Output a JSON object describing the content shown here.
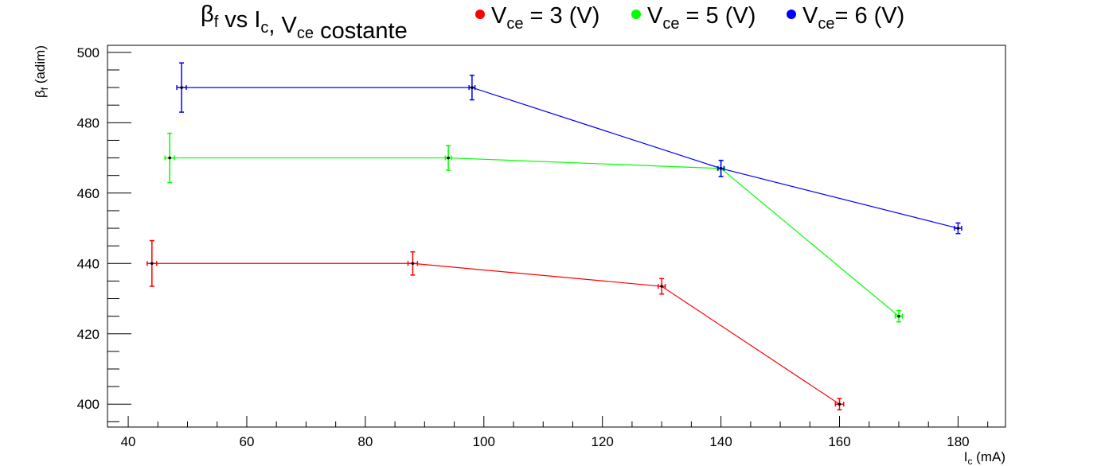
{
  "chart_data": {
    "type": "scatter",
    "title": {
      "text": "β",
      "parts": [
        {
          "text": "β",
          "sub": "f"
        },
        {
          "text": " vs I",
          "sub": "c"
        },
        {
          "text": ", V",
          "sub": "ce"
        },
        {
          "text": " costante",
          "sub": ""
        }
      ]
    },
    "xlabel": {
      "main": "I",
      "sub": "c",
      "rest": " (mA)"
    },
    "ylabel": {
      "main": "β",
      "sub": "f",
      "rest": " (adim)"
    },
    "xlim": [
      36.5,
      188
    ],
    "ylim": [
      393.5,
      502
    ],
    "xticks": [
      40,
      60,
      80,
      100,
      120,
      140,
      160,
      180
    ],
    "yticks": [
      400,
      420,
      440,
      460,
      480,
      500
    ],
    "legend_position": "top",
    "series": [
      {
        "name_parts": {
          "pre": "V",
          "sub": "ce",
          "post": " = 3 (V)"
        },
        "color": "#ff0000",
        "points": [
          {
            "x": 44,
            "y": 440,
            "ex": 0.8,
            "ey": 6.5
          },
          {
            "x": 88,
            "y": 440,
            "ex": 0.8,
            "ey": 3.3
          },
          {
            "x": 130,
            "y": 433.5,
            "ex": 0.6,
            "ey": 2.2
          },
          {
            "x": 160,
            "y": 400,
            "ex": 0.7,
            "ey": 1.6
          }
        ]
      },
      {
        "name_parts": {
          "pre": "V",
          "sub": "ce",
          "post": " = 5 (V)"
        },
        "color": "#00ff00",
        "points": [
          {
            "x": 47,
            "y": 470,
            "ex": 0.8,
            "ey": 7
          },
          {
            "x": 94,
            "y": 470,
            "ex": 0.5,
            "ey": 3.5
          },
          {
            "x": 140,
            "y": 467,
            "ex": 0.6,
            "ey": 2.3
          },
          {
            "x": 170,
            "y": 425,
            "ex": 0.6,
            "ey": 1.6
          }
        ]
      },
      {
        "name_parts": {
          "pre": "V",
          "sub": "ce",
          "post": "= 6 (V)"
        },
        "color": "#0000ff",
        "points": [
          {
            "x": 49,
            "y": 490,
            "ex": 0.8,
            "ey": 7
          },
          {
            "x": 98,
            "y": 490,
            "ex": 0.5,
            "ey": 3.5
          },
          {
            "x": 140,
            "y": 467,
            "ex": 0.5,
            "ey": 2.3
          },
          {
            "x": 180,
            "y": 450,
            "ex": 0.6,
            "ey": 1.5
          }
        ]
      }
    ]
  }
}
